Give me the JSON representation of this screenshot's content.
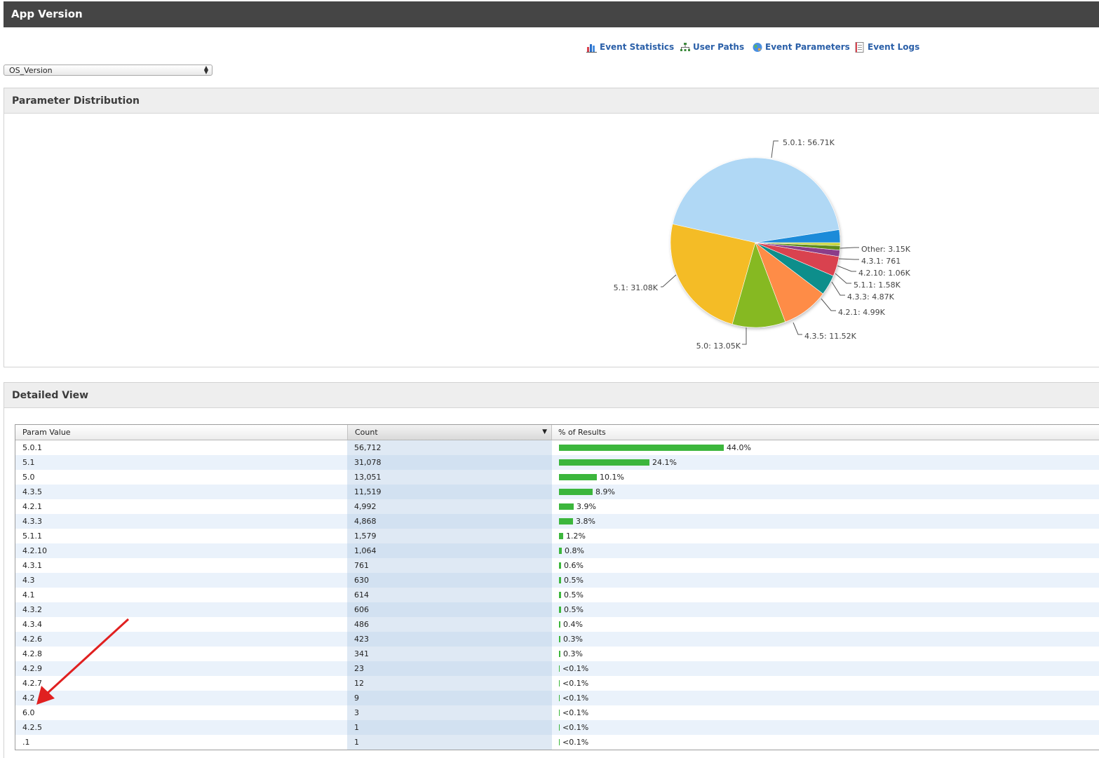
{
  "header": {
    "title": "App Version"
  },
  "nav": [
    {
      "label": "Event Statistics",
      "icon": "bar-chart-icon"
    },
    {
      "label": "User Paths",
      "icon": "sitemap-icon"
    },
    {
      "label": "Event Parameters",
      "icon": "globe-icon"
    },
    {
      "label": "Event Logs",
      "icon": "document-icon"
    }
  ],
  "param_select": {
    "value": "OS_Version"
  },
  "distribution": {
    "title": "Parameter Distribution",
    "chart_data": {
      "type": "pie",
      "slices": [
        {
          "label": "5.0.1: 56.71K",
          "value": 56712,
          "color": "#b0d8f5"
        },
        {
          "label": "5.1: 31.08K",
          "value": 31078,
          "color": "#f4bc25"
        },
        {
          "label": "5.0: 13.05K",
          "value": 13051,
          "color": "#86b920"
        },
        {
          "label": "4.3.5: 11.52K",
          "value": 11519,
          "color": "#fe8c46"
        },
        {
          "label": "4.2.1: 4.99K",
          "value": 4992,
          "color": "#088e8b"
        },
        {
          "label": "4.3.3: 4.87K",
          "value": 4868,
          "color": "#d9434f"
        },
        {
          "label": "5.1.1: 1.58K",
          "value": 1579,
          "color": "#8b3c89"
        },
        {
          "label": "4.2.10: 1.06K",
          "value": 1064,
          "color": "#5f8b1e"
        },
        {
          "label": "4.3.1: 761",
          "value": 761,
          "color": "#cbd63e"
        },
        {
          "label": "Other: 3.15K",
          "value": 3149,
          "color": "#1b8bd9"
        }
      ]
    }
  },
  "detail": {
    "title": "Detailed View",
    "columns": [
      "Param Value",
      "Count",
      "% of Results"
    ],
    "rows": [
      {
        "param": "5.0.1",
        "count": "56,712",
        "pct": "44.0%",
        "frac": 0.44
      },
      {
        "param": "5.1",
        "count": "31,078",
        "pct": "24.1%",
        "frac": 0.241
      },
      {
        "param": "5.0",
        "count": "13,051",
        "pct": "10.1%",
        "frac": 0.101
      },
      {
        "param": "4.3.5",
        "count": "11,519",
        "pct": "8.9%",
        "frac": 0.089
      },
      {
        "param": "4.2.1",
        "count": "4,992",
        "pct": "3.9%",
        "frac": 0.039
      },
      {
        "param": "4.3.3",
        "count": "4,868",
        "pct": "3.8%",
        "frac": 0.038
      },
      {
        "param": "5.1.1",
        "count": "1,579",
        "pct": "1.2%",
        "frac": 0.012
      },
      {
        "param": "4.2.10",
        "count": "1,064",
        "pct": "0.8%",
        "frac": 0.008
      },
      {
        "param": "4.3.1",
        "count": "761",
        "pct": "0.6%",
        "frac": 0.006
      },
      {
        "param": "4.3",
        "count": "630",
        "pct": "0.5%",
        "frac": 0.005
      },
      {
        "param": "4.1",
        "count": "614",
        "pct": "0.5%",
        "frac": 0.005
      },
      {
        "param": "4.3.2",
        "count": "606",
        "pct": "0.5%",
        "frac": 0.005
      },
      {
        "param": "4.3.4",
        "count": "486",
        "pct": "0.4%",
        "frac": 0.004
      },
      {
        "param": "4.2.6",
        "count": "423",
        "pct": "0.3%",
        "frac": 0.003
      },
      {
        "param": "4.2.8",
        "count": "341",
        "pct": "0.3%",
        "frac": 0.003
      },
      {
        "param": "4.2.9",
        "count": "23",
        "pct": "<0.1%",
        "frac": 0.0002
      },
      {
        "param": "4.2.7",
        "count": "12",
        "pct": "<0.1%",
        "frac": 0.0001
      },
      {
        "param": "4.2",
        "count": "9",
        "pct": "<0.1%",
        "frac": 0.0001
      },
      {
        "param": "6.0",
        "count": "3",
        "pct": "<0.1%",
        "frac": 0.0001
      },
      {
        "param": "4.2.5",
        "count": "1",
        "pct": "<0.1%",
        "frac": 0.0001
      },
      {
        "param": ".1",
        "count": "1",
        "pct": "<0.1%",
        "frac": 0.0001
      }
    ]
  },
  "colors": {
    "accent": "#2a5fa8",
    "bar": "#3cb63c",
    "annotation_arrow": "#e02020"
  }
}
